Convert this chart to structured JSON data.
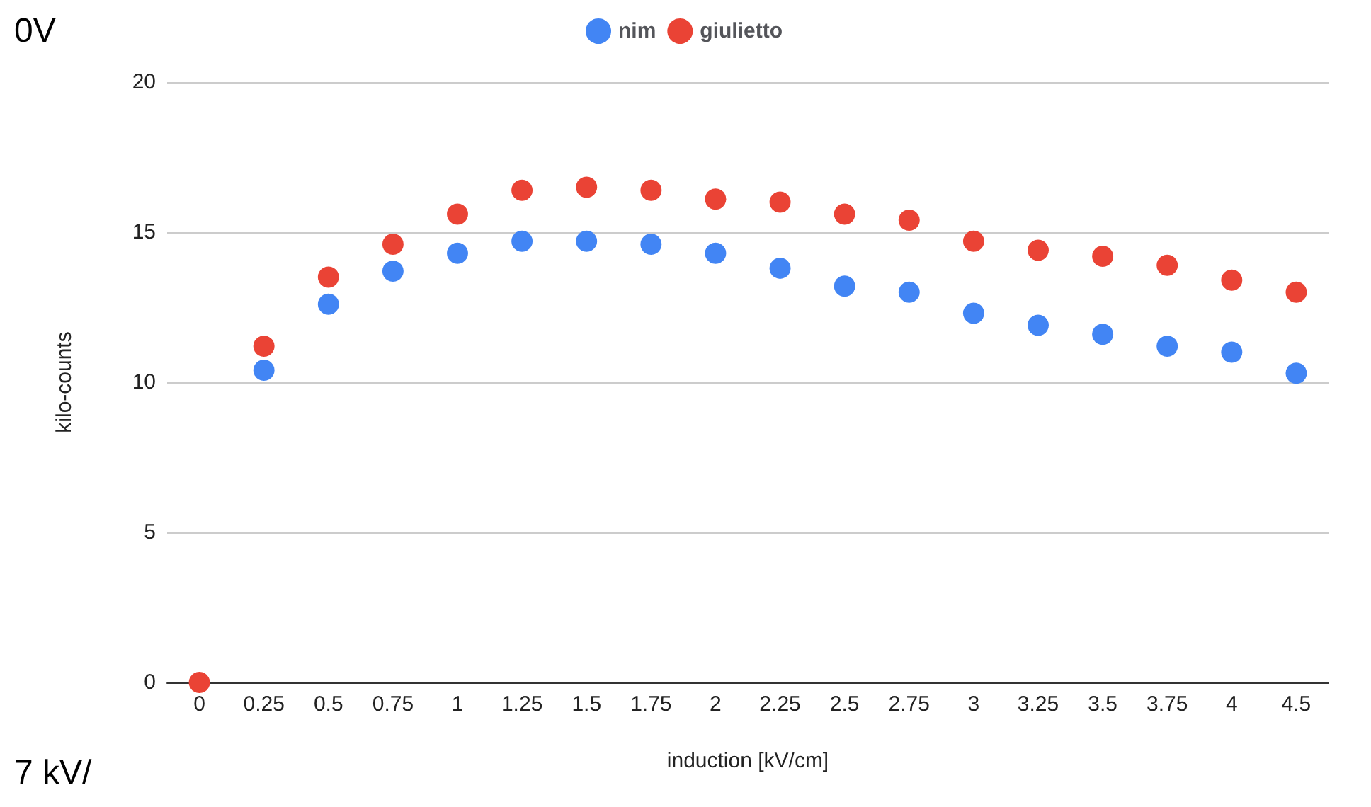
{
  "chart_data": {
    "type": "scatter",
    "xlabel": "induction [kV/cm]",
    "ylabel": "kilo-counts",
    "categories": [
      "0",
      "0.25",
      "0.5",
      "0.75",
      "1",
      "1.25",
      "1.5",
      "1.75",
      "2",
      "2.25",
      "2.5",
      "2.75",
      "3",
      "3.25",
      "3.5",
      "3.75",
      "4",
      "4.5"
    ],
    "series": [
      {
        "name": "nim",
        "color": "#4285f4",
        "values": [
          null,
          10.4,
          12.6,
          13.7,
          14.3,
          14.7,
          14.7,
          14.6,
          14.3,
          13.8,
          13.2,
          13.0,
          12.3,
          11.9,
          11.6,
          11.2,
          11.0,
          10.3
        ]
      },
      {
        "name": "giulietto",
        "color": "#ea4335",
        "values": [
          0,
          11.2,
          13.5,
          14.6,
          15.6,
          16.4,
          16.5,
          16.4,
          16.1,
          16.0,
          15.6,
          15.4,
          14.7,
          14.4,
          14.2,
          13.9,
          13.4,
          13.0
        ]
      }
    ],
    "ylim": [
      0,
      20
    ],
    "yticks": [
      0,
      5,
      10,
      15,
      20
    ],
    "grid": "y",
    "legend": "top",
    "marker": "circle",
    "annotations": [
      "0V",
      "7 kV/"
    ]
  }
}
